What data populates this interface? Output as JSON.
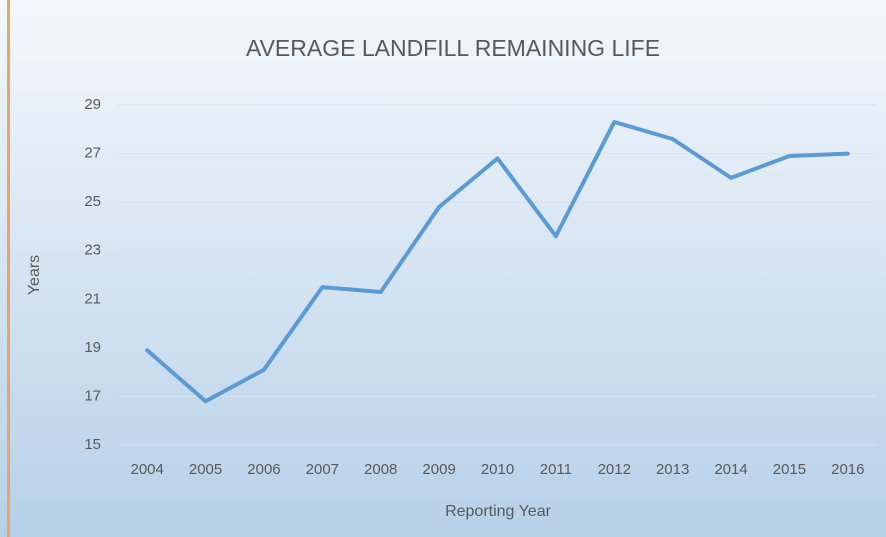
{
  "chart_data": {
    "type": "line",
    "title": "AVERAGE LANDFILL REMAINING LIFE",
    "x_label": "Reporting Year",
    "y_label": "Years",
    "categories": [
      "2004",
      "2005",
      "2006",
      "2007",
      "2008",
      "2009",
      "2010",
      "2011",
      "2012",
      "2013",
      "2014",
      "2015",
      "2016"
    ],
    "values": [
      18.9,
      16.8,
      18.1,
      21.5,
      21.3,
      24.8,
      26.8,
      23.6,
      28.3,
      27.6,
      26.0,
      26.9,
      27.0
    ],
    "color": "#5b9bd5",
    "ylim": [
      15,
      29
    ],
    "yticks": [
      15,
      17,
      19,
      21,
      23,
      25,
      27,
      29
    ],
    "grid": true
  }
}
